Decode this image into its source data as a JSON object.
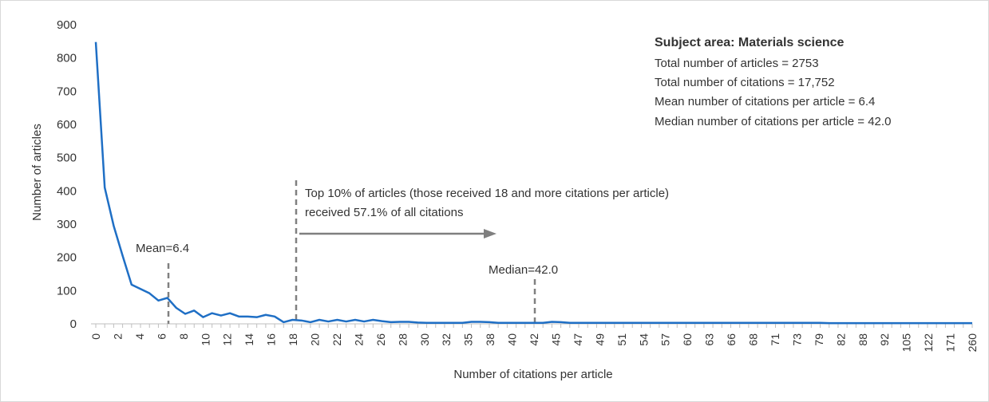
{
  "chart_data": {
    "type": "line",
    "xlabel": "Number of citations per article",
    "ylabel": "Number of articles",
    "ylim": [
      0,
      900
    ],
    "y_ticks": [
      "0",
      "100",
      "200",
      "300",
      "400",
      "500",
      "600",
      "700",
      "800",
      "900"
    ],
    "x_ticks": [
      "0",
      "2",
      "4",
      "6",
      "8",
      "10",
      "12",
      "14",
      "16",
      "18",
      "20",
      "22",
      "24",
      "26",
      "28",
      "30",
      "32",
      "35",
      "38",
      "40",
      "42",
      "45",
      "47",
      "49",
      "51",
      "54",
      "57",
      "60",
      "63",
      "66",
      "68",
      "71",
      "73",
      "79",
      "82",
      "88",
      "92",
      "105",
      "122",
      "171",
      "260"
    ],
    "values": [
      848,
      410,
      295,
      205,
      118,
      105,
      92,
      70,
      78,
      48,
      30,
      40,
      20,
      32,
      25,
      32,
      22,
      22,
      20,
      27,
      22,
      5,
      12,
      10,
      5,
      12,
      7,
      12,
      7,
      12,
      7,
      12,
      8,
      5,
      6,
      6,
      4,
      3,
      3,
      3,
      3,
      3,
      6,
      6,
      5,
      3,
      3,
      3,
      3,
      3,
      3,
      6,
      5,
      3,
      3,
      3,
      3,
      3,
      3,
      3,
      3,
      3,
      3,
      3,
      3,
      3,
      3,
      3,
      3,
      3,
      3,
      3,
      3,
      3,
      3,
      3,
      3,
      3,
      3,
      3,
      3,
      3,
      2,
      2,
      2,
      2,
      2,
      2,
      2,
      2,
      2,
      2,
      2,
      2,
      2,
      2,
      2,
      2,
      2
    ],
    "grid": false,
    "annotations": {
      "mean_label": "Mean=6.4",
      "median_label": "Median=42.0",
      "top_line1": "Top 10% of articles (those received 18 and more citations per article)",
      "top_line2": "received 57.1% of all citations"
    },
    "summary": {
      "heading": "Subject area: Materials science",
      "lines": [
        "Total number of articles = 2753",
        "Total number of citations = 17,752",
        "Mean number of citations per article = 6.4",
        "Median number of citations per article = 42.0"
      ]
    },
    "colors": {
      "line": "#1f6fc5",
      "dash": "#808080",
      "arrow": "#7f7f7f"
    }
  }
}
